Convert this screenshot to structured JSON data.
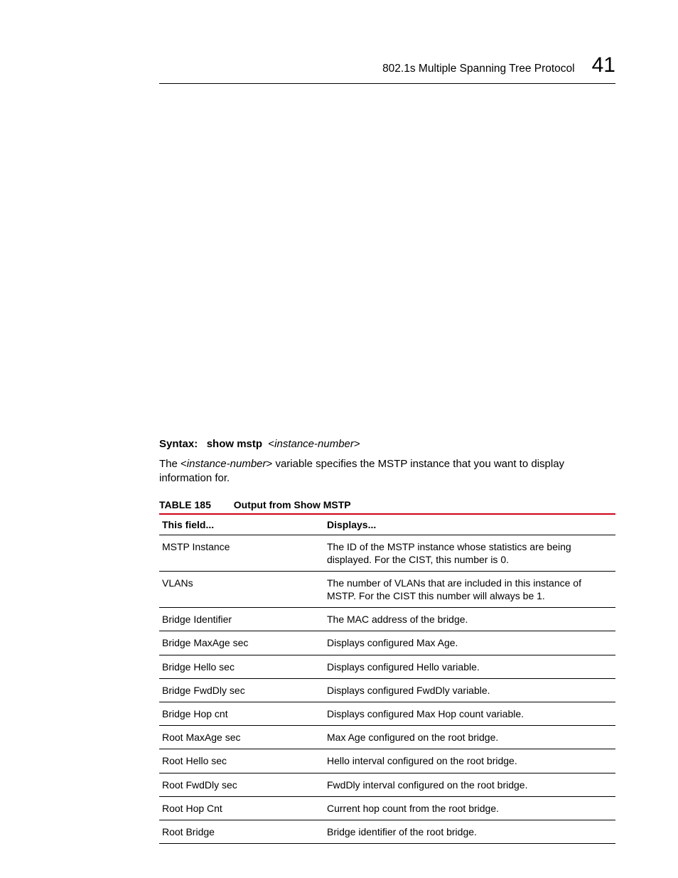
{
  "header": {
    "section_title": "802.1s Multiple Spanning Tree Protocol",
    "chapter_number": "41"
  },
  "syntax": {
    "label": "Syntax:",
    "command": "show mstp",
    "arg_open": "<",
    "arg_name": "instance-number",
    "arg_close": ">"
  },
  "paragraph": {
    "pre": "The <",
    "var": "instance-number",
    "post": "> variable specifies the MSTP instance that you want to display information for."
  },
  "table": {
    "label": "TABLE 185",
    "caption": "Output from Show MSTP",
    "header_rule_color": "#d0021b",
    "columns": [
      "This field...",
      "Displays..."
    ],
    "rows": [
      [
        "MSTP Instance",
        "The ID of the MSTP instance whose statistics are being displayed. For the CIST, this number is 0."
      ],
      [
        "VLANs",
        "The number of VLANs that are included in this instance of MSTP. For the CIST this number will always be 1."
      ],
      [
        "Bridge Identifier",
        "The MAC address of the bridge."
      ],
      [
        "Bridge MaxAge sec",
        "Displays configured Max Age."
      ],
      [
        "Bridge Hello sec",
        "Displays configured Hello variable."
      ],
      [
        "Bridge FwdDly sec",
        "Displays configured FwdDly variable."
      ],
      [
        "Bridge Hop cnt",
        "Displays configured Max Hop count variable."
      ],
      [
        "Root MaxAge sec",
        "Max Age configured on the root bridge."
      ],
      [
        "Root Hello sec",
        "Hello interval configured on the root bridge."
      ],
      [
        "Root FwdDly sec",
        "FwdDly interval configured on the root bridge."
      ],
      [
        "Root Hop Cnt",
        "Current hop count from the root bridge."
      ],
      [
        "Root Bridge",
        "Bridge identifier of the root bridge."
      ]
    ]
  }
}
